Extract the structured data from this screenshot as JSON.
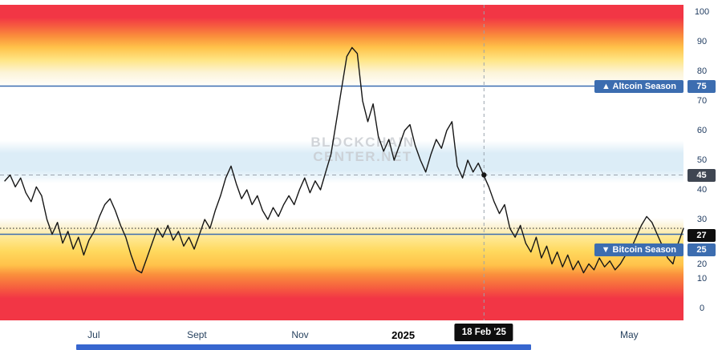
{
  "colors": {
    "accent_blue": "#3c6db0",
    "line": "#161616",
    "dark_badge": "#3f4652",
    "black_badge": "#0e0e0e",
    "axis_text": "#1e3a5f",
    "crosshair_dash": "#9aa3ad",
    "bottom_bar": "#3766cf",
    "watermark": "#c8cbd0"
  },
  "chart_data": {
    "type": "line",
    "y_axis": {
      "side": "right",
      "range": [
        0,
        100
      ],
      "ticks": [
        {
          "label": "100",
          "value": 100
        },
        {
          "label": "90",
          "value": 90
        },
        {
          "label": "80",
          "value": 80
        },
        {
          "label": "70",
          "value": 70
        },
        {
          "label": "60",
          "value": 60
        },
        {
          "label": "50",
          "value": 50
        },
        {
          "label": "40",
          "value": 40
        },
        {
          "label": "30",
          "value": 30
        },
        {
          "label": "20",
          "value": 20,
          "nudge": 19
        },
        {
          "label": "10",
          "value": 10
        },
        {
          "label": "0",
          "value": 0
        }
      ]
    },
    "x_axis": {
      "ticks": [
        {
          "label": "Jul",
          "pos": 0.131
        },
        {
          "label": "Sept",
          "pos": 0.283
        },
        {
          "label": "Nov",
          "pos": 0.435
        },
        {
          "label": "2025",
          "pos": 0.587,
          "bold": true
        },
        {
          "label": "May",
          "pos": 0.92
        }
      ]
    },
    "reference_lines": [
      {
        "label": "▲ Altcoin Season",
        "badge": "75",
        "value": 75,
        "style": "solid",
        "color": "#3c6db0"
      },
      {
        "badge": "45",
        "value": 45,
        "style": "dashed",
        "color": "#9aa3ad"
      },
      {
        "badge": "27",
        "value": 27,
        "style": "dotted",
        "color": "#3a3a3a"
      },
      {
        "label": "▼ Bitcoin Season",
        "badge": "25",
        "value": 25,
        "style": "solid",
        "color": "#3c6db0"
      }
    ],
    "crosshair": {
      "x_label": "18 Feb '25",
      "x_pos": 0.706,
      "value_at_cursor": 45
    },
    "watermark": [
      "BLOCKCHAIN",
      "CENTER.NET"
    ],
    "background_gradient": [
      {
        "pos": 0.0,
        "color": "#f23645"
      },
      {
        "pos": 0.04,
        "color": "#f23645"
      },
      {
        "pos": 0.07,
        "color": "#f6603f"
      },
      {
        "pos": 0.1,
        "color": "#fa8f3c"
      },
      {
        "pos": 0.135,
        "color": "#ffc24a"
      },
      {
        "pos": 0.175,
        "color": "#ffe585"
      },
      {
        "pos": 0.215,
        "color": "#fcf4d8"
      },
      {
        "pos": 0.26,
        "color": "#ffffff"
      },
      {
        "pos": 0.43,
        "color": "#ffffff"
      },
      {
        "pos": 0.47,
        "color": "#dcedf7"
      },
      {
        "pos": 0.525,
        "color": "#dcedf7"
      },
      {
        "pos": 0.565,
        "color": "#ffffff"
      },
      {
        "pos": 0.675,
        "color": "#ffffff"
      },
      {
        "pos": 0.705,
        "color": "#fbf2d2"
      },
      {
        "pos": 0.735,
        "color": "#ffe996"
      },
      {
        "pos": 0.78,
        "color": "#ffd95e"
      },
      {
        "pos": 0.825,
        "color": "#ffc24a"
      },
      {
        "pos": 0.855,
        "color": "#fa8f3c"
      },
      {
        "pos": 0.895,
        "color": "#f6603f"
      },
      {
        "pos": 0.93,
        "color": "#f23645"
      },
      {
        "pos": 1.0,
        "color": "#f23645"
      }
    ],
    "values": [
      43,
      45,
      41,
      44,
      39,
      36,
      41,
      38,
      30,
      25,
      29,
      22,
      26,
      20,
      24,
      18,
      23,
      26,
      31,
      35,
      37,
      33,
      28,
      24,
      18,
      13,
      12,
      17,
      22,
      27,
      24,
      28,
      23,
      26,
      21,
      24,
      20,
      25,
      30,
      27,
      33,
      38,
      44,
      48,
      42,
      37,
      40,
      35,
      38,
      33,
      30,
      34,
      31,
      35,
      38,
      35,
      40,
      44,
      39,
      43,
      40,
      46,
      52,
      63,
      74,
      85,
      88,
      86,
      70,
      63,
      69,
      58,
      53,
      57,
      50,
      55,
      60,
      62,
      55,
      50,
      46,
      52,
      57,
      54,
      60,
      63,
      48,
      44,
      50,
      46,
      49,
      45,
      41,
      36,
      32,
      35,
      27,
      24,
      28,
      22,
      19,
      24,
      17,
      21,
      15,
      19,
      14,
      18,
      13,
      16,
      12,
      15,
      13,
      17,
      14,
      16,
      13,
      15,
      18,
      20,
      24,
      28,
      31,
      29,
      25,
      21,
      17,
      15,
      22,
      27
    ]
  }
}
